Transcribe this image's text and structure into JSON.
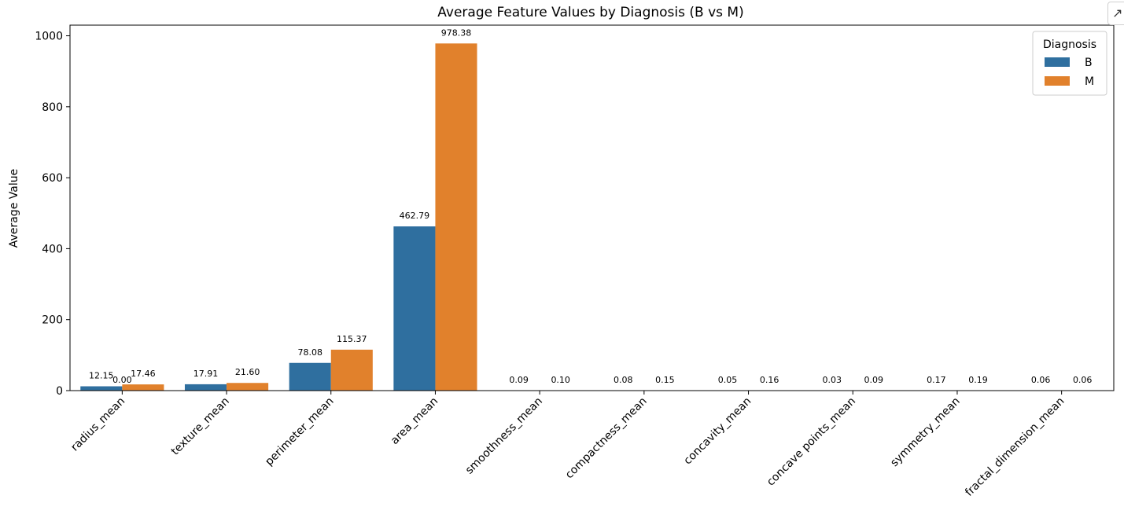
{
  "toolbar": {
    "expand_icon": "↗"
  },
  "chart_data": {
    "type": "bar",
    "title": "Average Feature Values by Diagnosis (B vs M)",
    "xlabel": "",
    "ylabel": "Average Value",
    "ylim": [
      0,
      1030
    ],
    "yticks": [
      0,
      200,
      400,
      600,
      800,
      1000
    ],
    "grid": false,
    "legend": {
      "title": "Diagnosis",
      "position": "top-right"
    },
    "categories": [
      "radius_mean",
      "texture_mean",
      "perimeter_mean",
      "area_mean",
      "smoothness_mean",
      "compactness_mean",
      "concavity_mean",
      "concave points_mean",
      "symmetry_mean",
      "fractal_dimension_mean"
    ],
    "series": [
      {
        "name": "B",
        "color": "#2f6f9f",
        "values": [
          12.15,
          17.91,
          78.08,
          462.79,
          0.09,
          0.08,
          0.05,
          0.03,
          0.17,
          0.06
        ],
        "labels": [
          "12.15",
          "17.91",
          "78.08",
          "462.79",
          "0.09",
          "0.08",
          "0.05",
          "0.03",
          "0.17",
          "0.06"
        ]
      },
      {
        "name": "M",
        "color": "#e1812c",
        "values": [
          17.46,
          21.6,
          115.37,
          978.38,
          0.1,
          0.15,
          0.16,
          0.09,
          0.19,
          0.06
        ],
        "labels": [
          "17.46",
          "21.60",
          "115.37",
          "978.38",
          "0.10",
          "0.15",
          "0.16",
          "0.09",
          "0.19",
          "0.06"
        ]
      }
    ],
    "annotations": [
      {
        "text": "0.00",
        "category": "radius_mean",
        "value": 0
      }
    ]
  }
}
